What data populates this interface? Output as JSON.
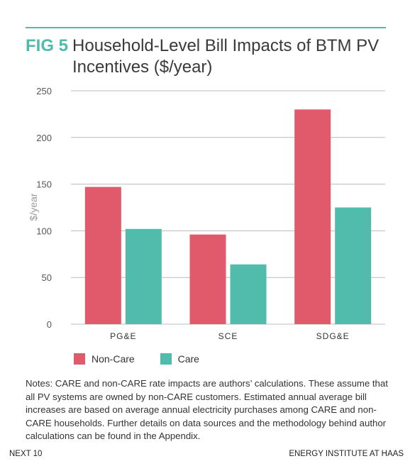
{
  "header": {
    "fig_label": "FIG 5",
    "title_line1": "Household-Level Bill Impacts of BTM PV",
    "title_line2": "Incentives ($/year)"
  },
  "colors": {
    "accent": "#4ebbab",
    "non_care": "#e05a6c",
    "care": "#52bcac",
    "gridline": "#bbbbbb",
    "axis_text": "#555555",
    "ylabel_text": "#9a9a9a"
  },
  "chart_data": {
    "type": "bar",
    "categories": [
      "PG&E",
      "SCE",
      "SDG&E"
    ],
    "series": [
      {
        "name": "Non-Care",
        "values": [
          147,
          96,
          230
        ]
      },
      {
        "name": "Care",
        "values": [
          102,
          64,
          125
        ]
      }
    ],
    "ylabel": "$/year",
    "xlabel": "",
    "ylim": [
      0,
      250
    ],
    "yticks": [
      0,
      50,
      100,
      150,
      200,
      250
    ],
    "grid": true,
    "legend": "bottom-left"
  },
  "notes": "Notes: CARE and non-CARE rate impacts are authors’ calculations. These assume that all PV systems are owned by non-CARE customers. Estimated annual average bill increases are based on average annual electricity purchases among CARE and non-CARE households. Further details on data sources and the methodology behind author calculations can be found in the Appendix.",
  "footer": {
    "left": "NEXT 10",
    "right": "ENERGY INSTITUTE AT HAAS"
  }
}
